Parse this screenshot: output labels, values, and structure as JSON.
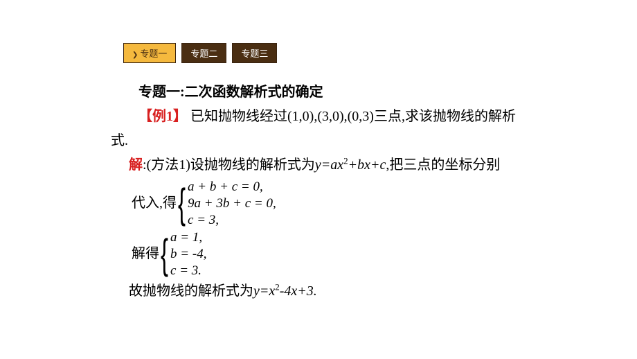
{
  "tabs": [
    {
      "label": "专题一",
      "active": true
    },
    {
      "label": "专题二",
      "active": false
    },
    {
      "label": "专题三",
      "active": false
    }
  ],
  "heading": "专题一:二次函数解析式的确定",
  "example_label": "【例1】",
  "problem_part1": "已知抛物线经过(1,0),(3,0),(0,3)三点,求该抛物线的解析",
  "problem_part2": "式.",
  "solution_label": "解",
  "method_intro": ":(方法1)设抛物线的解析式为",
  "method_tail": ",把三点的坐标分别",
  "formula_str": "y=ax²+bx+c",
  "sys1_lead": "代入,得",
  "sys1": {
    "r1": "a + b + c = 0,",
    "r2": "9a + 3b + c = 0,",
    "r3": "c = 3,"
  },
  "sys2_lead": "解得",
  "sys2": {
    "r1": "a = 1,",
    "r2": "b = -4,",
    "r3": "c = 3."
  },
  "conclusion_lead": "故抛物线的解析式为",
  "conclusion_formula": "y=x²-4x+3.",
  "colors": {
    "active_tab_bg": "#f5b93e",
    "inactive_tab_bg": "#4a2e12",
    "red_text": "#d82020",
    "body_text": "#000000",
    "page_bg": "#ffffff"
  }
}
